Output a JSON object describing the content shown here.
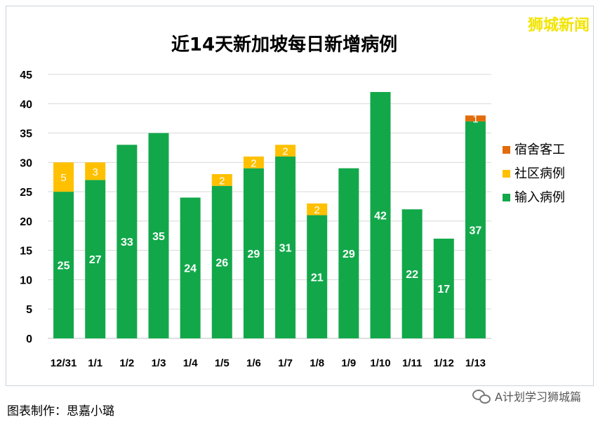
{
  "brand": "狮城新闻",
  "footer": {
    "left": "图表制作：思嘉小璐",
    "right": "A计划学习狮城篇",
    "icon": "wechat-icon"
  },
  "colors": {
    "imported": "#12a84a",
    "community": "#ffc000",
    "dormitory": "#e26b0a",
    "grid": "#d9d9d9",
    "axis_text": "#000000"
  },
  "chart_data": {
    "type": "bar",
    "stacked": true,
    "title": "近14天新加坡每日新增病例",
    "categories": [
      "12/31",
      "1/1",
      "1/2",
      "1/3",
      "1/4",
      "1/5",
      "1/6",
      "1/7",
      "1/8",
      "1/9",
      "1/10",
      "1/11",
      "1/12",
      "1/13"
    ],
    "series": [
      {
        "name": "输入病例",
        "values": [
          25,
          27,
          33,
          35,
          24,
          26,
          29,
          31,
          21,
          29,
          42,
          22,
          17,
          37
        ]
      },
      {
        "name": "社区病例",
        "values": [
          5,
          3,
          0,
          0,
          0,
          2,
          2,
          2,
          2,
          0,
          0,
          0,
          0,
          0
        ]
      },
      {
        "name": "宿舍客工",
        "values": [
          0,
          0,
          0,
          0,
          0,
          0,
          0,
          0,
          0,
          0,
          0,
          0,
          0,
          1
        ]
      }
    ],
    "ylim": [
      0,
      45
    ],
    "yticks": [
      0,
      5,
      10,
      15,
      20,
      25,
      30,
      35,
      40,
      45
    ],
    "grid": true,
    "legend_position": "right"
  }
}
